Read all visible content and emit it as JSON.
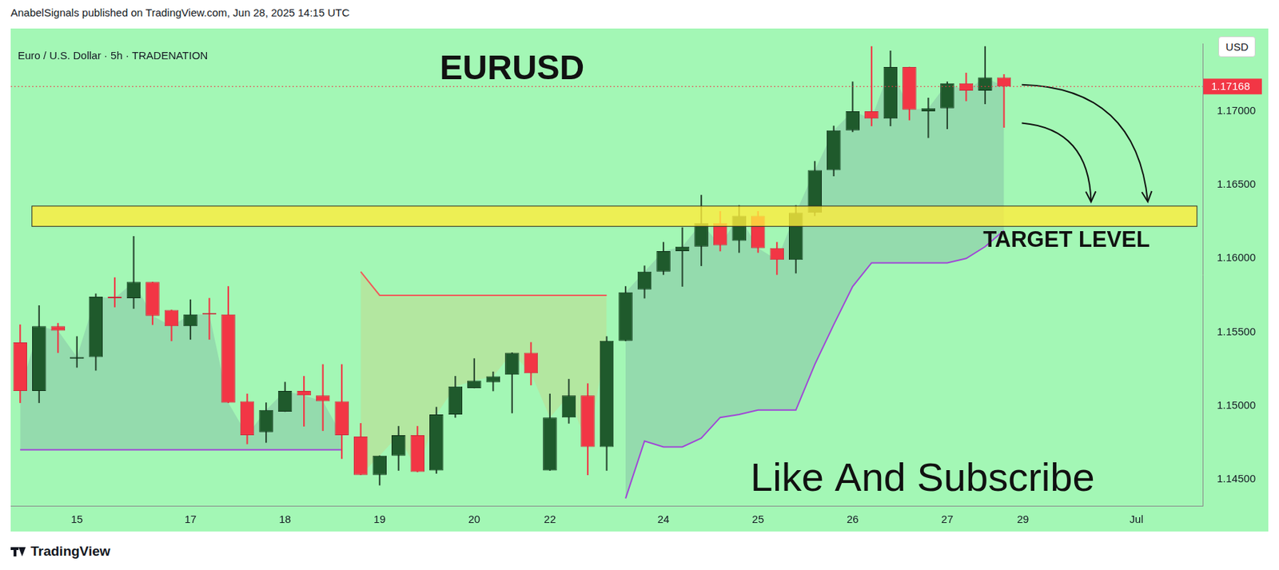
{
  "header": {
    "text": "AnabelSignals published on TradingView.com, Jun 28, 2025 14:15 UTC"
  },
  "footer": {
    "text": "TradingView"
  },
  "chart_data": {
    "type": "candlestick",
    "title": "EURUSD",
    "subtitle": "Euro / U.S. Dollar · 5h · TRADENATION",
    "axis_label": "USD",
    "categories": [
      null,
      null,
      null,
      "15",
      null,
      null,
      null,
      null,
      null,
      "17",
      null,
      null,
      null,
      null,
      "18",
      null,
      null,
      null,
      null,
      "19",
      null,
      null,
      null,
      null,
      "20",
      null,
      null,
      null,
      "22",
      null,
      null,
      null,
      null,
      null,
      "24",
      null,
      null,
      null,
      null,
      "25",
      null,
      null,
      null,
      null,
      "26",
      null,
      null,
      null,
      null,
      "27",
      null,
      null,
      null,
      "29",
      null,
      null,
      null,
      null,
      null,
      "Jul",
      null,
      null,
      null
    ],
    "open": [
      1.1543,
      1.151,
      1.1554,
      1.1532,
      1.1533,
      1.1574,
      1.1573,
      1.1584,
      1.1565,
      1.1554,
      1.1563,
      1.1562,
      1.1503,
      1.1482,
      1.1496,
      1.151,
      1.1507,
      1.1503,
      1.1479,
      1.1453,
      1.1466,
      1.148,
      1.1456,
      1.1494,
      1.1512,
      1.1516,
      1.1521,
      1.1536,
      1.1456,
      1.1492,
      1.1507,
      1.1472,
      1.1544,
      1.1579,
      1.1591,
      1.1605,
      1.1608,
      1.1624,
      1.1612,
      1.1629,
      1.1607,
      1.1599,
      1.1631,
      1.166,
      1.1687,
      1.17,
      1.1695,
      1.173,
      1.17,
      1.1702,
      1.1719,
      1.1714,
      1.1723,
      null,
      null,
      null,
      null,
      null,
      null,
      null,
      null,
      null,
      null
    ],
    "high": [
      1.1555,
      1.1568,
      1.1556,
      1.1547,
      1.1576,
      1.1587,
      1.1615,
      1.1584,
      1.1565,
      1.1572,
      1.1573,
      1.1581,
      1.1508,
      1.1502,
      1.1516,
      1.152,
      1.1528,
      1.1528,
      1.1488,
      1.1466,
      1.1486,
      1.1486,
      1.1499,
      1.152,
      1.1532,
      1.1523,
      1.1536,
      1.1543,
      1.1508,
      1.1518,
      1.1515,
      1.1547,
      1.1581,
      1.1595,
      1.1611,
      1.1621,
      1.1643,
      1.1632,
      1.1636,
      1.1632,
      1.1611,
      1.1636,
      1.1666,
      1.169,
      1.172,
      1.1744,
      1.1741,
      1.173,
      1.1709,
      1.172,
      1.1726,
      1.1744,
      1.1725,
      null,
      null,
      null,
      null,
      null,
      null,
      null,
      null,
      null,
      null
    ],
    "low": [
      1.1502,
      1.1502,
      1.1536,
      1.1526,
      1.1524,
      1.1567,
      1.1566,
      1.1555,
      1.1544,
      1.1545,
      1.1545,
      1.1502,
      1.1474,
      1.1475,
      1.1496,
      1.1486,
      1.1483,
      1.1464,
      1.1453,
      1.1446,
      1.1456,
      1.1455,
      1.1454,
      1.1492,
      1.1512,
      1.151,
      1.1495,
      1.1514,
      1.1456,
      1.1488,
      1.1453,
      1.1456,
      1.1544,
      1.1573,
      1.1589,
      1.1581,
      1.1595,
      1.1605,
      1.1604,
      1.1604,
      1.1589,
      1.159,
      1.1629,
      1.1656,
      1.1686,
      1.169,
      1.169,
      1.1694,
      1.1682,
      1.1688,
      1.1707,
      1.1705,
      1.1689,
      null,
      null,
      null,
      null,
      null,
      null,
      null,
      null,
      null,
      null
    ],
    "close": [
      1.151,
      1.1554,
      1.1551,
      1.1533,
      1.1574,
      1.1573,
      1.1584,
      1.1561,
      1.1554,
      1.1562,
      1.1562,
      1.1502,
      1.148,
      1.1497,
      1.151,
      1.1507,
      1.1503,
      1.148,
      1.1453,
      1.1466,
      1.148,
      1.1455,
      1.1494,
      1.1513,
      1.1517,
      1.152,
      1.1536,
      1.1522,
      1.1492,
      1.1507,
      1.1472,
      1.1544,
      1.1577,
      1.1591,
      1.1605,
      1.1608,
      1.1624,
      1.1609,
      1.1629,
      1.1607,
      1.1599,
      1.1631,
      1.166,
      1.1687,
      1.17,
      1.1695,
      1.173,
      1.1701,
      1.1702,
      1.1719,
      1.1714,
      1.1723,
      1.17168,
      null,
      null,
      null,
      null,
      null,
      null,
      null,
      null,
      null,
      null
    ],
    "series": [
      {
        "type": "line",
        "color": "#a047d6",
        "values": [
          1.147,
          1.147,
          1.147,
          1.147,
          1.147,
          1.147,
          1.147,
          1.147,
          1.147,
          1.147,
          1.147,
          1.147,
          1.147,
          1.147,
          1.147,
          1.147,
          1.147,
          1.147,
          null,
          null,
          null,
          null,
          null,
          null,
          null,
          null,
          null,
          null,
          null,
          null,
          null,
          null,
          1.1437,
          1.1476,
          1.1472,
          1.1472,
          1.1478,
          1.1492,
          1.1494,
          1.1497,
          1.1497,
          1.1497,
          1.1528,
          1.1555,
          1.1581,
          1.1597,
          1.1597,
          1.1597,
          1.1597,
          1.1597,
          1.16,
          1.1608,
          1.1619,
          null,
          null,
          null,
          null,
          null,
          null,
          null,
          null,
          null,
          null
        ]
      },
      {
        "type": "line",
        "color": "#f05a5a",
        "values": [
          null,
          null,
          null,
          null,
          null,
          null,
          null,
          null,
          null,
          null,
          null,
          null,
          null,
          null,
          null,
          null,
          null,
          null,
          1.1591,
          1.1575,
          1.1575,
          1.1575,
          1.1575,
          1.1575,
          1.1575,
          1.1575,
          1.1575,
          1.1575,
          1.1575,
          1.1575,
          1.1575,
          1.1575,
          null,
          null,
          null,
          null,
          null,
          null,
          null,
          null,
          null,
          null,
          null,
          null,
          null,
          null,
          null,
          null,
          null,
          null,
          null,
          null,
          null,
          null,
          null,
          null,
          null,
          null,
          null,
          null,
          null,
          null,
          null
        ]
      }
    ],
    "ylim": [
      1.1432,
      1.1746
    ],
    "yticks": [
      {
        "value": 1.145,
        "label": "1.14500"
      },
      {
        "value": 1.15,
        "label": "1.15000"
      },
      {
        "value": 1.155,
        "label": "1.15500"
      },
      {
        "value": 1.16,
        "label": "1.16000"
      },
      {
        "value": 1.165,
        "label": "1.16500"
      },
      {
        "value": 1.17,
        "label": "1.17000"
      }
    ],
    "grid": false,
    "annotations": [
      {
        "type": "zone",
        "label": "TARGET LEVEL",
        "from": 1.16218,
        "to": 1.16356
      },
      {
        "type": "price_line",
        "value": 1.17168,
        "label": "1.17168"
      },
      {
        "type": "text",
        "text": "Like And Subscribe"
      }
    ]
  }
}
